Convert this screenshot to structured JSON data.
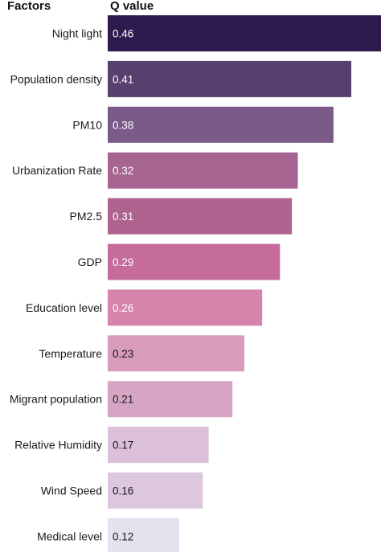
{
  "chart_data": {
    "type": "bar",
    "orientation": "horizontal",
    "headers": {
      "category": "Factors",
      "value": "Q value"
    },
    "categories": [
      "Night light",
      "Population density",
      "PM10",
      "Urbanization Rate",
      "PM2.5",
      "GDP",
      "Education level",
      "Temperature",
      "Migrant population",
      "Relative Humidity",
      "Wind Speed",
      "Medical level"
    ],
    "values": [
      0.46,
      0.41,
      0.38,
      0.32,
      0.31,
      0.29,
      0.26,
      0.23,
      0.21,
      0.17,
      0.16,
      0.12
    ],
    "labels": [
      "0.46",
      "0.41",
      "0.38",
      "0.32",
      "0.31",
      "0.29",
      "0.26",
      "0.23",
      "0.21",
      "0.17",
      "0.16",
      "0.12"
    ],
    "colors": [
      "#2d1b4e",
      "#56406e",
      "#7a5a88",
      "#a56590",
      "#b0628f",
      "#c56c9b",
      "#d784ad",
      "#d99bbb",
      "#d6a5c4",
      "#dcc0d9",
      "#dcc7de",
      "#e3e2ee"
    ],
    "label_colors": [
      "#ffffff",
      "#ffffff",
      "#ffffff",
      "#ffffff",
      "#ffffff",
      "#ffffff",
      "#ffffff",
      "#1a1a1a",
      "#1a1a1a",
      "#1a1a1a",
      "#1a1a1a",
      "#1a1a1a"
    ],
    "xlim": [
      0,
      0.46
    ]
  }
}
